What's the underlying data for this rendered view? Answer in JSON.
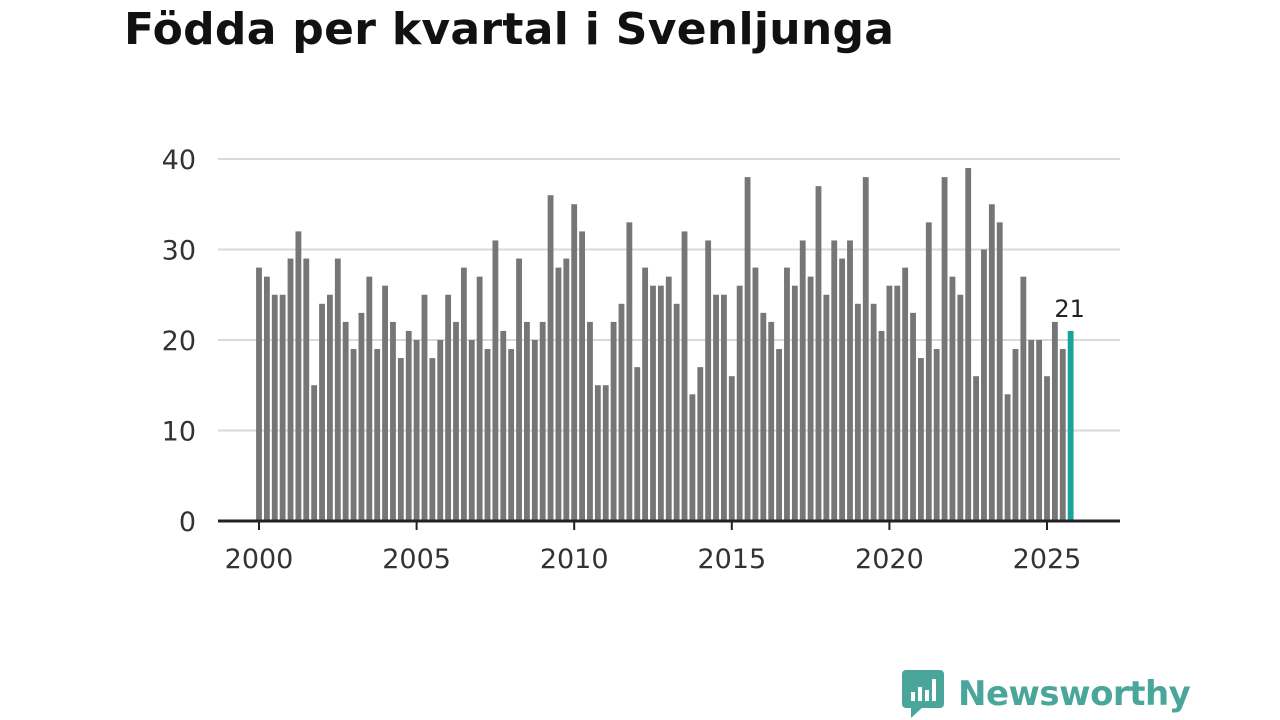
{
  "chart_data": {
    "type": "bar",
    "title": "Födda per kvartal i Svenljunga",
    "xlabel": "",
    "ylabel": "",
    "ylim": [
      0,
      40
    ],
    "yticks": [
      0,
      10,
      20,
      30,
      40
    ],
    "xticks": [
      2000,
      2005,
      2010,
      2015,
      2020,
      2025
    ],
    "grid": true,
    "bar_color": "#767577",
    "highlight_color": "#1aa39a",
    "annotation": {
      "text": "21",
      "index": 103
    },
    "categories": [
      "2000 Q1",
      "2000 Q2",
      "2000 Q3",
      "2000 Q4",
      "2001 Q1",
      "2001 Q2",
      "2001 Q3",
      "2001 Q4",
      "2002 Q1",
      "2002 Q2",
      "2002 Q3",
      "2002 Q4",
      "2003 Q1",
      "2003 Q2",
      "2003 Q3",
      "2003 Q4",
      "2004 Q1",
      "2004 Q2",
      "2004 Q3",
      "2004 Q4",
      "2005 Q1",
      "2005 Q2",
      "2005 Q3",
      "2005 Q4",
      "2006 Q1",
      "2006 Q2",
      "2006 Q3",
      "2006 Q4",
      "2007 Q1",
      "2007 Q2",
      "2007 Q3",
      "2007 Q4",
      "2008 Q1",
      "2008 Q2",
      "2008 Q3",
      "2008 Q4",
      "2009 Q1",
      "2009 Q2",
      "2009 Q3",
      "2009 Q4",
      "2010 Q1",
      "2010 Q2",
      "2010 Q3",
      "2010 Q4",
      "2011 Q1",
      "2011 Q2",
      "2011 Q3",
      "2011 Q4",
      "2012 Q1",
      "2012 Q2",
      "2012 Q3",
      "2012 Q4",
      "2013 Q1",
      "2013 Q2",
      "2013 Q3",
      "2013 Q4",
      "2014 Q1",
      "2014 Q2",
      "2014 Q3",
      "2014 Q4",
      "2015 Q1",
      "2015 Q2",
      "2015 Q3",
      "2015 Q4",
      "2016 Q1",
      "2016 Q2",
      "2016 Q3",
      "2016 Q4",
      "2017 Q1",
      "2017 Q2",
      "2017 Q3",
      "2017 Q4",
      "2018 Q1",
      "2018 Q2",
      "2018 Q3",
      "2018 Q4",
      "2019 Q1",
      "2019 Q2",
      "2019 Q3",
      "2019 Q4",
      "2020 Q1",
      "2020 Q2",
      "2020 Q3",
      "2020 Q4",
      "2021 Q1",
      "2021 Q2",
      "2021 Q3",
      "2021 Q4",
      "2022 Q1",
      "2022 Q2",
      "2022 Q3",
      "2022 Q4",
      "2023 Q1",
      "2023 Q2",
      "2023 Q3",
      "2023 Q4",
      "2024 Q1",
      "2024 Q2",
      "2024 Q3",
      "2024 Q4",
      "2025 Q1",
      "2025 Q2",
      "2025 Q3",
      "2025 Q4"
    ],
    "x": [
      2000.0,
      2000.25,
      2000.5,
      2000.75,
      2001.0,
      2001.25,
      2001.5,
      2001.75,
      2002.0,
      2002.25,
      2002.5,
      2002.75,
      2003.0,
      2003.25,
      2003.5,
      2003.75,
      2004.0,
      2004.25,
      2004.5,
      2004.75,
      2005.0,
      2005.25,
      2005.5,
      2005.75,
      2006.0,
      2006.25,
      2006.5,
      2006.75,
      2007.0,
      2007.25,
      2007.5,
      2007.75,
      2008.0,
      2008.25,
      2008.5,
      2008.75,
      2009.0,
      2009.25,
      2009.5,
      2009.75,
      2010.0,
      2010.25,
      2010.5,
      2010.75,
      2011.0,
      2011.25,
      2011.5,
      2011.75,
      2012.0,
      2012.25,
      2012.5,
      2012.75,
      2013.0,
      2013.25,
      2013.5,
      2013.75,
      2014.0,
      2014.25,
      2014.5,
      2014.75,
      2015.0,
      2015.25,
      2015.5,
      2015.75,
      2016.0,
      2016.25,
      2016.5,
      2016.75,
      2017.0,
      2017.25,
      2017.5,
      2017.75,
      2018.0,
      2018.25,
      2018.5,
      2018.75,
      2019.0,
      2019.25,
      2019.5,
      2019.75,
      2020.0,
      2020.25,
      2020.5,
      2020.75,
      2021.0,
      2021.25,
      2021.5,
      2021.75,
      2022.0,
      2022.25,
      2022.5,
      2022.75,
      2023.0,
      2023.25,
      2023.5,
      2023.75,
      2024.0,
      2024.25,
      2024.5,
      2024.75,
      2025.0,
      2025.25,
      2025.5,
      2025.75
    ],
    "values": [
      28,
      27,
      25,
      25,
      29,
      32,
      29,
      15,
      24,
      25,
      29,
      22,
      19,
      23,
      27,
      19,
      26,
      22,
      18,
      21,
      20,
      25,
      18,
      20,
      25,
      22,
      28,
      20,
      27,
      19,
      31,
      21,
      19,
      29,
      22,
      20,
      22,
      36,
      28,
      29,
      35,
      32,
      22,
      15,
      15,
      22,
      24,
      33,
      17,
      28,
      26,
      26,
      27,
      24,
      32,
      14,
      17,
      31,
      25,
      25,
      16,
      26,
      38,
      28,
      23,
      22,
      19,
      28,
      26,
      31,
      27,
      37,
      25,
      31,
      29,
      31,
      24,
      38,
      24,
      21,
      26,
      26,
      28,
      23,
      18,
      33,
      19,
      38,
      27,
      25,
      39,
      16,
      30,
      35,
      33,
      14,
      19,
      27,
      20,
      20,
      16,
      22,
      19,
      21
    ]
  },
  "branding": {
    "name": "Newsworthy"
  }
}
